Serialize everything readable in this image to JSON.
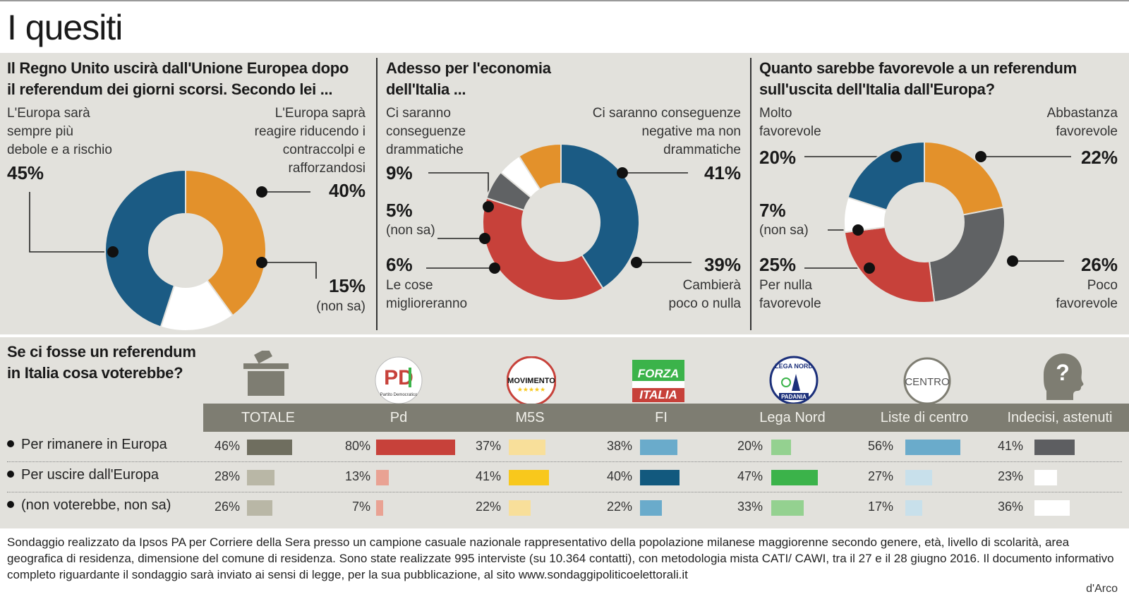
{
  "title": "I quesiti",
  "colors": {
    "orange": "#e3912b",
    "blue": "#1b5b84",
    "white": "#ffffff",
    "gray": "#606264",
    "red": "#c7413a"
  },
  "q1": {
    "title_line1": "Il Regno Unito uscirà dall'Unione Europea  dopo",
    "title_line2": "il referendum dei giorni scorsi. Secondo lei ...",
    "lbl_weak": [
      "L'Europa sarà",
      "sempre più",
      "debole e a rischio"
    ],
    "pct_weak": "45%",
    "lbl_react": [
      "L'Europa saprà",
      "reagire riducendo i",
      "contraccolpi e",
      "rafforzandosi"
    ],
    "pct_react": "40%",
    "pct_ns": "15%",
    "lbl_ns": "(non sa)"
  },
  "q2": {
    "title_line1": "Adesso per l'economia",
    "title_line2": "dell'Italia ...",
    "lbl_dram": [
      "Ci saranno",
      "conseguenze",
      "drammatiche"
    ],
    "pct_dram": "9%",
    "pct_ns": "5%",
    "lbl_ns": "(non sa)",
    "pct_better": "6%",
    "lbl_better": [
      "Le cose",
      "miglioreranno"
    ],
    "lbl_neg": [
      "Ci saranno conseguenze",
      "negative ma non",
      "drammatiche"
    ],
    "pct_neg": "41%",
    "pct_little": "39%",
    "lbl_little": [
      "Cambierà",
      "poco o nulla"
    ]
  },
  "q3": {
    "title_line1": "Quanto sarebbe favorevole a un referendum",
    "title_line2": "sull'uscita dell'Italia dall'Europa?",
    "lbl_molto": [
      "Molto",
      "favorevole"
    ],
    "pct_molto": "20%",
    "pct_ns": "7%",
    "lbl_ns": "(non sa)",
    "pct_nulla": "25%",
    "lbl_nulla": [
      "Per nulla",
      "favorevole"
    ],
    "lbl_abba": [
      "Abbastanza",
      "favorevole"
    ],
    "pct_abba": "22%",
    "pct_poco": "26%",
    "lbl_poco": [
      "Poco",
      "favorevole"
    ]
  },
  "chart_data": [
    {
      "type": "pie",
      "title": "Il Regno Unito uscirà dall'Unione Europea  dopo il referendum dei giorni scorsi. Secondo lei ...",
      "slices": [
        {
          "label": "L'Europa saprà reagire riducendo i contraccolpi e rafforzandosi",
          "value": 40,
          "color": "#e3912b"
        },
        {
          "label": "(non sa)",
          "value": 15,
          "color": "#ffffff"
        },
        {
          "label": "L'Europa sarà sempre più debole e a rischio",
          "value": 45,
          "color": "#1b5b84"
        }
      ]
    },
    {
      "type": "pie",
      "title": "Adesso per l'economia dell'Italia ...",
      "slices": [
        {
          "label": "Ci saranno conseguenze negative ma non drammatiche",
          "value": 41,
          "color": "#1b5b84"
        },
        {
          "label": "Cambierà poco o nulla",
          "value": 39,
          "color": "#c7413a"
        },
        {
          "label": "Le cose miglioreranno",
          "value": 6,
          "color": "#606264"
        },
        {
          "label": "(non sa)",
          "value": 5,
          "color": "#ffffff"
        },
        {
          "label": "Ci saranno conseguenze drammatiche",
          "value": 9,
          "color": "#e3912b"
        }
      ]
    },
    {
      "type": "pie",
      "title": "Quanto sarebbe favorevole a un referendum sull'uscita dell'Italia dall'Europa?",
      "slices": [
        {
          "label": "Abbastanza favorevole",
          "value": 22,
          "color": "#e3912b"
        },
        {
          "label": "Poco favorevole",
          "value": 26,
          "color": "#606264"
        },
        {
          "label": "Per nulla favorevole",
          "value": 25,
          "color": "#c7413a"
        },
        {
          "label": "(non sa)",
          "value": 7,
          "color": "#ffffff"
        },
        {
          "label": "Molto favorevole",
          "value": 20,
          "color": "#1b5b84"
        }
      ]
    },
    {
      "type": "bar",
      "title": "Se ci fosse un referendum in Italia cosa voterebbe?",
      "categories": [
        "TOTALE",
        "Pd",
        "M5S",
        "FI",
        "Lega Nord",
        "Liste di centro",
        "Indecisi, astenuti"
      ],
      "series": [
        {
          "name": "Per rimanere in Europa",
          "values": [
            46,
            80,
            37,
            38,
            20,
            56,
            41
          ]
        },
        {
          "name": "Per uscire dall'Europa",
          "values": [
            28,
            13,
            41,
            40,
            47,
            27,
            23
          ]
        },
        {
          "name": "(non voterebbe, non sa)",
          "values": [
            26,
            7,
            22,
            22,
            33,
            17,
            36
          ]
        }
      ],
      "ylim": [
        0,
        100
      ],
      "colors_by_column": [
        [
          "#6f6e5f",
          "#b9b7a6",
          "#b9b7a6"
        ],
        [
          "#c7413a",
          "#e9a293",
          "#e9a293"
        ],
        [
          "#f8df9a",
          "#f8c81c",
          "#f8df9a"
        ],
        [
          "#6aabcb",
          "#12597e",
          "#6aabcb"
        ],
        [
          "#94d190",
          "#3bb34a",
          "#94d190"
        ],
        [
          "#6aabcb",
          "#c8e0eb",
          "#c8e0eb"
        ],
        [
          "#5d5e61",
          "#ffffff",
          "#ffffff"
        ]
      ]
    }
  ],
  "bottom": {
    "title_line1": "Se ci fosse un referendum",
    "title_line2": "in Italia cosa voterebbe?",
    "rows": [
      "Per rimanere in Europa",
      "Per uscire dall'Europa",
      "(non voterebbe, non sa)"
    ],
    "headers": [
      "TOTALE",
      "Pd",
      "M5S",
      "FI",
      "Lega Nord",
      "Liste di centro",
      "Indecisi, astenuti"
    ],
    "logos": {
      "pd_text": "PD",
      "pd_sub": "Partito Democratico",
      "m5s_text": "MOVIMENTO",
      "m5s_stars": "★★★★★",
      "fi_line1": "FORZA",
      "fi_line2": "ITALIA",
      "lega_top": "LEGA NORD",
      "lega_bottom": "PADANIA",
      "centro_text": "CENTRO",
      "question_mark": "?"
    }
  },
  "footer": {
    "text": "Sondaggio realizzato da Ipsos PA per Corriere della Sera presso un campione casuale nazionale rappresentativo della popolazione milanese maggiorenne secondo genere, età, livello di scolarità, area geografica di residenza, dimensione del comune di residenza. Sono state realizzate 995 interviste (su 10.364 contatti), con metodologia mista CATI/ CAWI, tra il 27 e il 28 giugno 2016. Il documento informativo completo riguardante il sondaggio sarà inviato ai sensi di legge, per la sua pubblicazione, al sito www.sondaggipoliticoelettorali.it",
    "credit": "d'Arco"
  }
}
